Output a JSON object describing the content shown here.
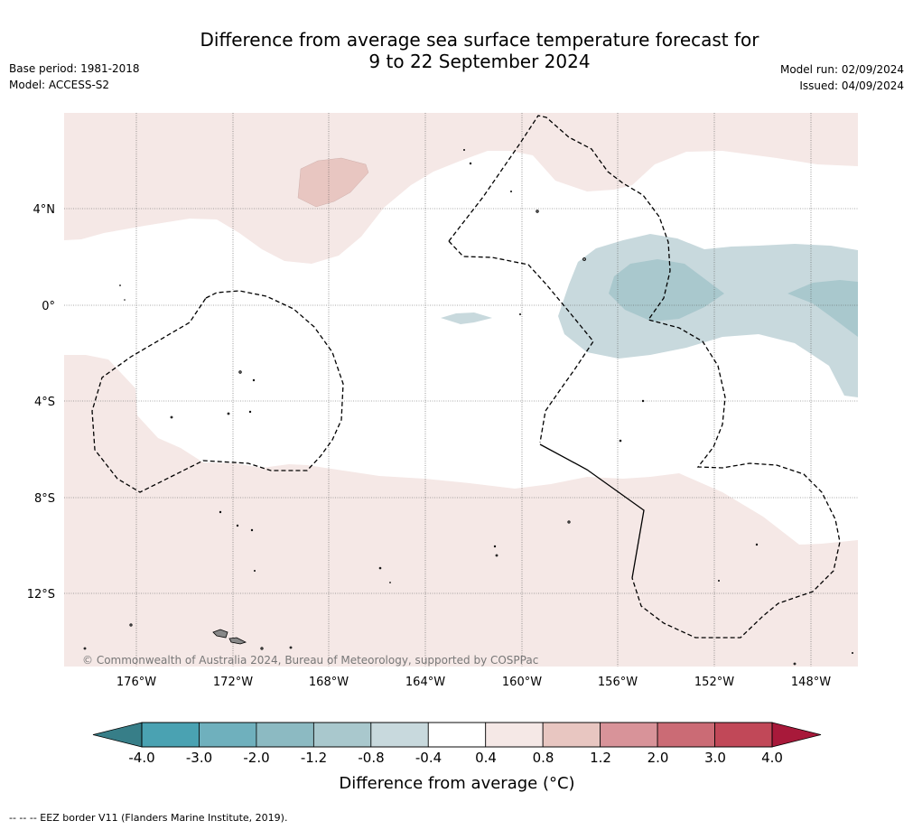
{
  "title_line1": "Difference from average sea surface temperature forecast for",
  "title_line2": "9 to 22 September 2024",
  "base_period": "Base period: 1981-2018",
  "model": "Model: ACCESS-S2",
  "model_run": "Model run: 02/09/2024",
  "issued": "Issued: 04/09/2024",
  "copyright": "© Commonwealth of Australia 2024, Bureau of Meteorology, supported by COSPPac",
  "lat_labels": [
    "4°N",
    "0°",
    "4°S",
    "8°S",
    "12°S"
  ],
  "lon_labels": [
    "176°W",
    "172°W",
    "168°W",
    "164°W",
    "160°W",
    "156°W",
    "152°W",
    "148°W"
  ],
  "colorbar": {
    "ticks": [
      "-4.0",
      "-3.0",
      "-2.0",
      "-1.2",
      "-0.8",
      "-0.4",
      "0.4",
      "0.8",
      "1.2",
      "2.0",
      "3.0",
      "4.0"
    ],
    "colors": [
      "#4aa2b2",
      "#6fb0bd",
      "#8cbac2",
      "#a9c8cd",
      "#c8d9dd",
      "#ffffff",
      "#f5e8e6",
      "#e8c6c1",
      "#d89399",
      "#cb6b75",
      "#c14858"
    ],
    "low_extend_color": "#377e88",
    "high_extend_color": "#a8193a",
    "label": "Difference from average (°C)"
  },
  "legend_note": "--  --  -- EEZ border V11 (Flanders Marine Institute, 2019)."
}
